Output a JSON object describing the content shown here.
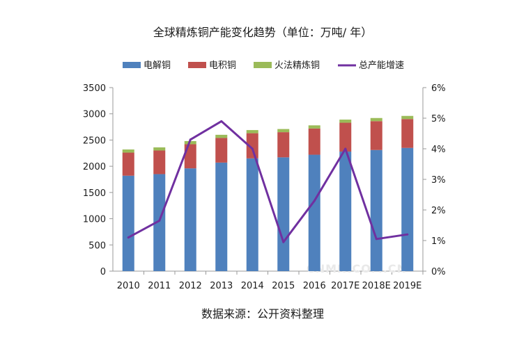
{
  "chart_data": {
    "type": "bar",
    "stacked": true,
    "title": "全球精炼铜产能变化趋势（单位：万吨/ 年）",
    "categories": [
      "2010",
      "2011",
      "2012",
      "2013",
      "2014",
      "2015",
      "2016",
      "2017E",
      "2018E",
      "2019E"
    ],
    "series": [
      {
        "name": "电解铜",
        "values": [
          1820,
          1850,
          1960,
          2070,
          2150,
          2170,
          2220,
          2280,
          2310,
          2350
        ],
        "color": "#4f81bd"
      },
      {
        "name": "电积铜",
        "values": [
          440,
          450,
          460,
          470,
          480,
          480,
          500,
          550,
          550,
          550
        ],
        "color": "#c0504d"
      },
      {
        "name": "火法精炼铜",
        "values": [
          60,
          60,
          60,
          60,
          60,
          60,
          60,
          60,
          60,
          60
        ],
        "color": "#9bbb59"
      }
    ],
    "line_series": {
      "name": "总产能增速",
      "values": [
        1.1,
        1.65,
        4.3,
        4.9,
        4.0,
        0.95,
        2.3,
        4.0,
        1.05,
        1.2
      ],
      "color": "#7030a0",
      "axis": "right"
    },
    "y_left": {
      "min": 0,
      "max": 3500,
      "ticks": [
        "0",
        "500",
        "1000",
        "1500",
        "2000",
        "2500",
        "3000",
        "3500"
      ]
    },
    "y_right": {
      "min": 0,
      "max": 6,
      "ticks": [
        "0%",
        "1%",
        "2%",
        "3%",
        "4%",
        "5%",
        "6%"
      ]
    },
    "legend_position": "top",
    "grid": false
  },
  "source_note": "数据来源：公开资料整理",
  "watermark": "CNMN.COM.CN"
}
